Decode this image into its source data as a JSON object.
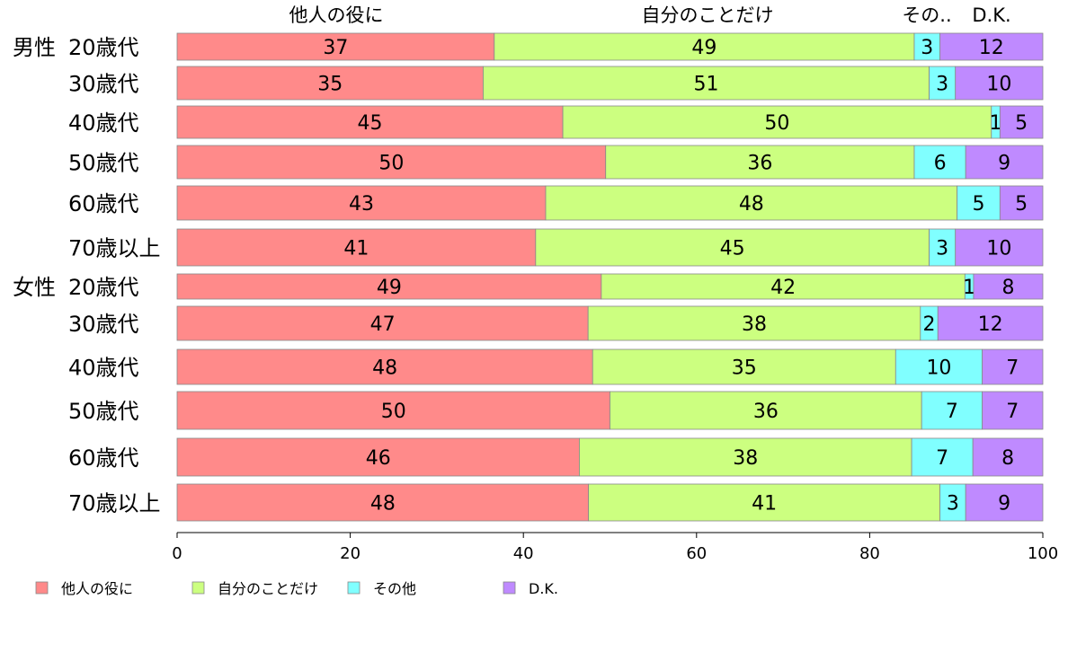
{
  "chart_data": {
    "type": "bar",
    "orientation": "horizontal",
    "stacked": true,
    "xlim": [
      0,
      100
    ],
    "xticks": [
      "0",
      "20",
      "40",
      "60",
      "80",
      "100"
    ],
    "column_headers": [
      "他人の役に",
      "自分のことだけ",
      "その..",
      "D.K."
    ],
    "groups": [
      {
        "label": "男性",
        "first_row": 0
      },
      {
        "label": "女性",
        "first_row": 6
      }
    ],
    "categories": [
      "20歳代",
      "30歳代",
      "40歳代",
      "50歳代",
      "60歳代",
      "70歳以上",
      "20歳代",
      "30歳代",
      "40歳代",
      "50歳代",
      "60歳代",
      "70歳以上"
    ],
    "series": [
      {
        "name": "他人の役に",
        "color": "#ff8a8a",
        "values": [
          37,
          35,
          45,
          50,
          43,
          41,
          49,
          47,
          48,
          50,
          46,
          48
        ]
      },
      {
        "name": "自分のことだけ",
        "color": "#ccff80",
        "values": [
          49,
          51,
          50,
          36,
          48,
          45,
          42,
          38,
          35,
          36,
          38,
          41
        ]
      },
      {
        "name": "その他",
        "color": "#80ffff",
        "values": [
          3,
          3,
          1,
          6,
          5,
          3,
          1,
          2,
          10,
          7,
          7,
          3
        ]
      },
      {
        "name": "D.K.",
        "color": "#bf8aff",
        "values": [
          12,
          10,
          5,
          9,
          5,
          10,
          8,
          12,
          7,
          7,
          8,
          9
        ]
      }
    ],
    "legend_position": "bottom-left",
    "grid": false
  }
}
